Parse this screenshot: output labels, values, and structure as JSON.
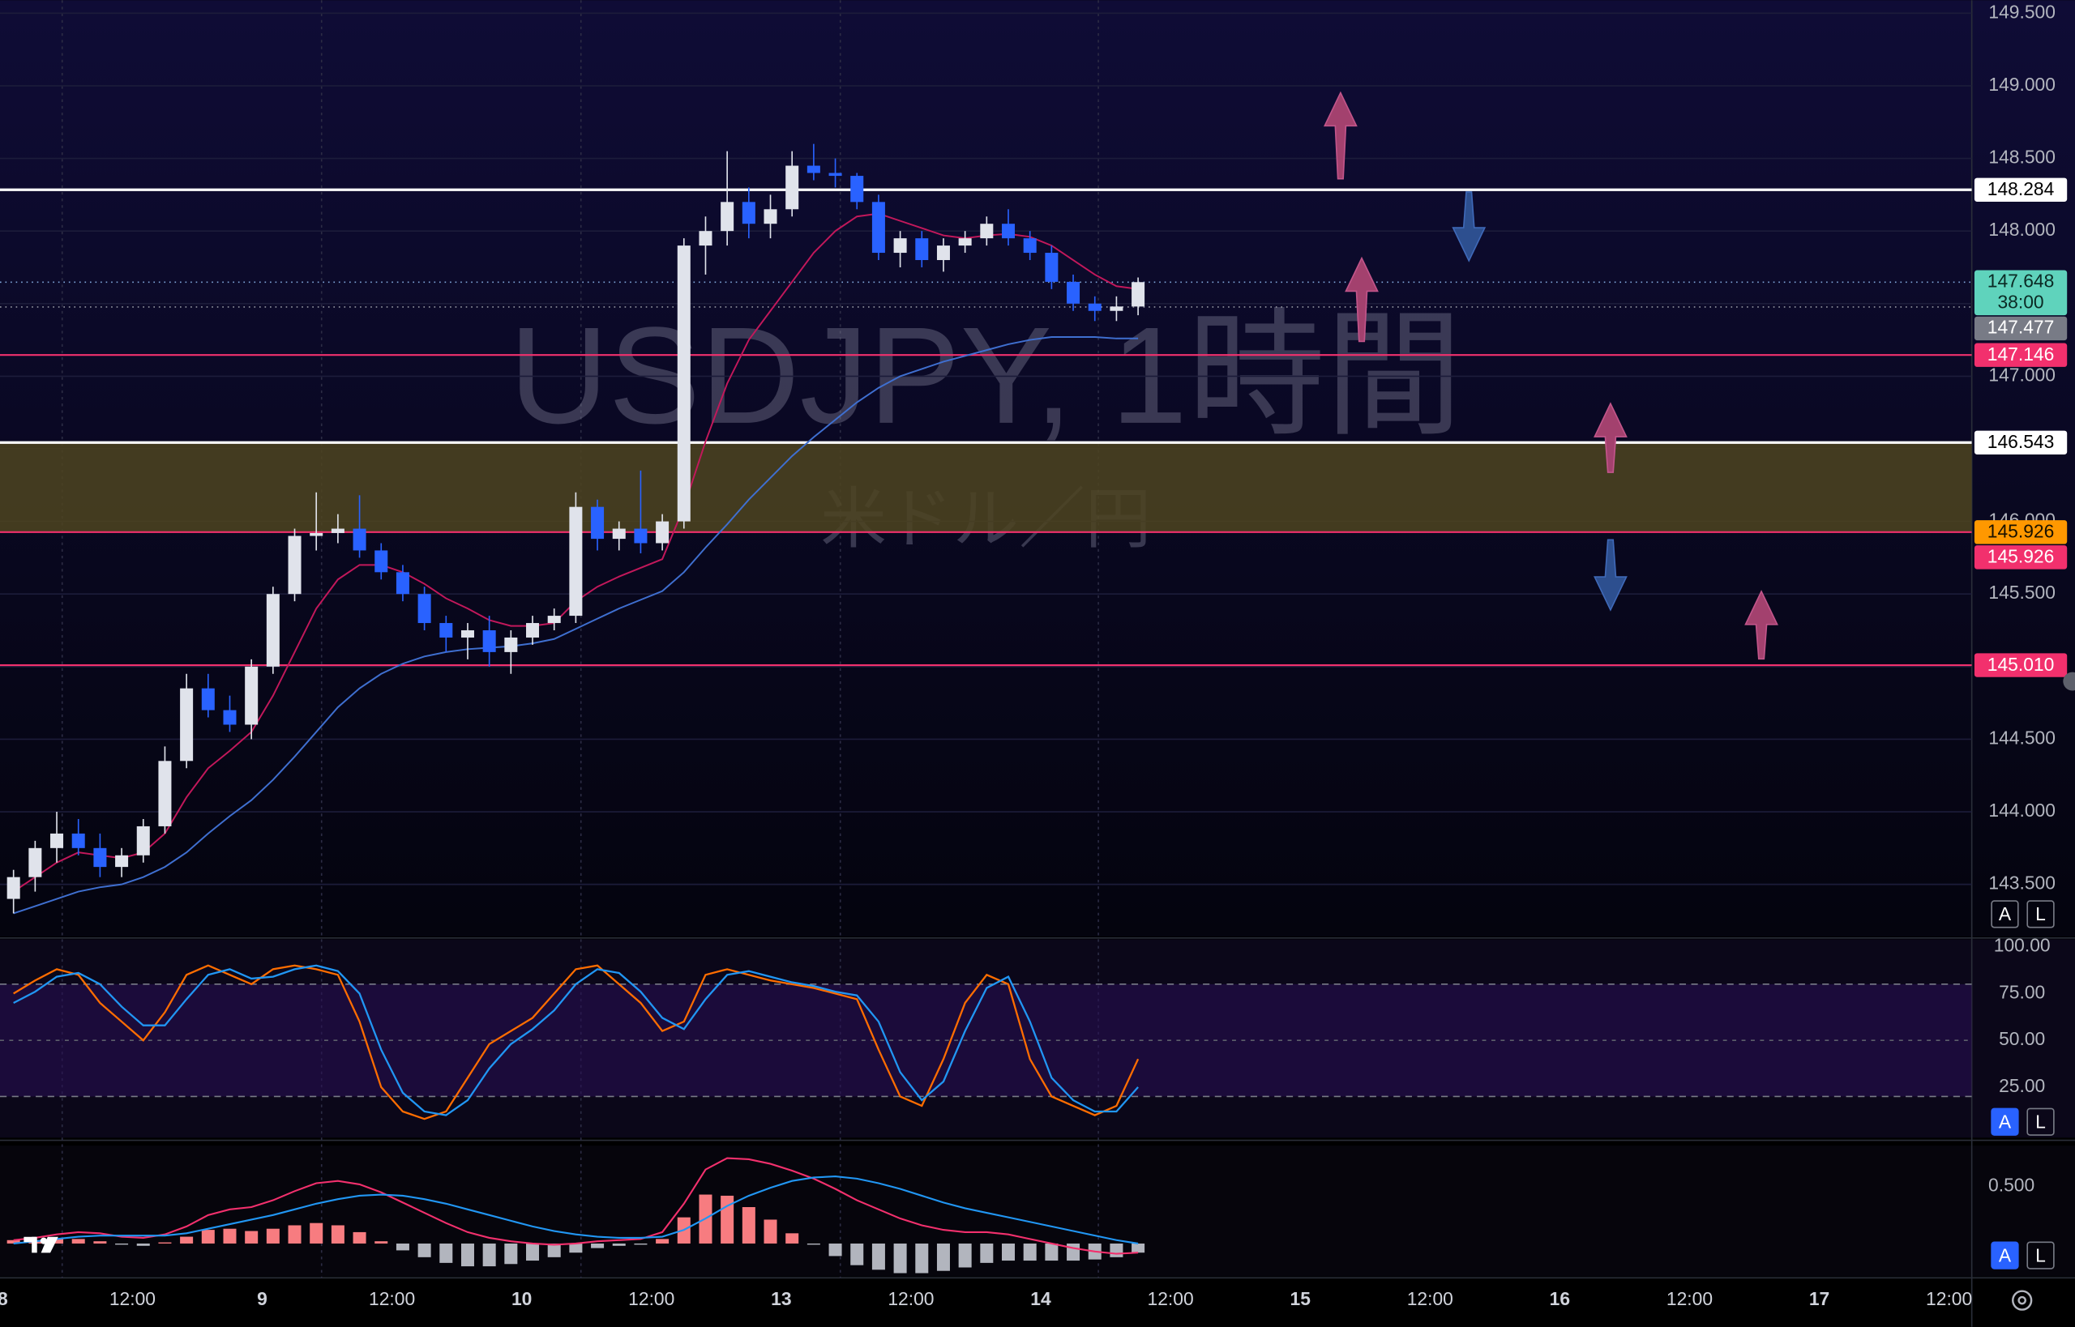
{
  "chart_data": {
    "type": "candlestick",
    "title": "USDJPY, 1時間",
    "subtitle": "米ドル／円",
    "xlim": [
      -0.25,
      182.1
    ],
    "ylim": [
      143.14,
      149.59
    ],
    "yticks": [
      {
        "value": 143.5,
        "label": "143.500"
      },
      {
        "value": 144,
        "label": "144.000"
      },
      {
        "value": 144.5,
        "label": "144.500"
      },
      {
        "value": 145,
        "label": "145.000"
      },
      {
        "value": 145.5,
        "label": "145.500"
      },
      {
        "value": 146,
        "label": "146.000"
      },
      {
        "value": 146.5,
        "label": "146.500"
      },
      {
        "value": 147,
        "label": "147.000"
      },
      {
        "value": 147.5,
        "label": "147.500"
      },
      {
        "value": 148,
        "label": "148.000"
      },
      {
        "value": 148.5,
        "label": "148.500"
      },
      {
        "value": 149,
        "label": "149.000"
      },
      {
        "value": 149.5,
        "label": "149.500"
      }
    ],
    "xticks": [
      {
        "value": 0,
        "label": "8"
      },
      {
        "value": 12,
        "label": "12:00"
      },
      {
        "value": 24,
        "label": "9"
      },
      {
        "value": 36,
        "label": "12:00"
      },
      {
        "value": 48,
        "label": "10"
      },
      {
        "value": 60,
        "label": "12:00"
      },
      {
        "value": 72,
        "label": "13"
      },
      {
        "value": 84,
        "label": "12:00"
      },
      {
        "value": 96,
        "label": "14"
      },
      {
        "value": 108,
        "label": "12:00"
      },
      {
        "value": 120,
        "label": "15"
      },
      {
        "value": 132,
        "label": "12:00"
      },
      {
        "value": 144,
        "label": "16"
      },
      {
        "value": 156,
        "label": "12:00"
      },
      {
        "value": 168,
        "label": "17"
      },
      {
        "value": 180,
        "label": "12:00"
      }
    ],
    "grid": true,
    "up_color": "#e0e3eb",
    "down_color": "#2962ff",
    "x": [
      1,
      3,
      5,
      7,
      9,
      11,
      13,
      15,
      17,
      19,
      21,
      23,
      25,
      27,
      29,
      31,
      33,
      35,
      37,
      39,
      41,
      43,
      45,
      47,
      49,
      51,
      53,
      55,
      57,
      59,
      61,
      63,
      65,
      67,
      69,
      71,
      73,
      75,
      77,
      79,
      81,
      83,
      85,
      87,
      89,
      91,
      93,
      95,
      97,
      99,
      101,
      103,
      105
    ],
    "open": [
      143.4,
      143.55,
      143.75,
      143.85,
      143.75,
      143.62,
      143.7,
      143.9,
      144.35,
      144.85,
      144.7,
      144.6,
      145.0,
      145.5,
      145.9,
      145.92,
      145.95,
      145.8,
      145.65,
      145.5,
      145.3,
      145.2,
      145.25,
      145.1,
      145.2,
      145.3,
      145.35,
      146.1,
      145.88,
      145.95,
      145.85,
      146.0,
      147.9,
      148.0,
      148.2,
      148.05,
      148.15,
      148.45,
      148.4,
      148.38,
      148.2,
      147.85,
      147.95,
      147.8,
      147.9,
      147.95,
      148.05,
      147.95,
      147.85,
      147.65,
      147.5,
      147.45,
      147.48
    ],
    "high": [
      143.6,
      143.8,
      144.0,
      143.95,
      143.85,
      143.75,
      143.95,
      144.45,
      144.95,
      144.95,
      144.8,
      145.05,
      145.55,
      145.95,
      146.2,
      146.05,
      146.18,
      145.85,
      145.7,
      145.55,
      145.35,
      145.3,
      145.35,
      145.25,
      145.35,
      145.4,
      146.2,
      146.15,
      146.0,
      146.35,
      146.05,
      147.95,
      148.1,
      148.55,
      148.3,
      148.25,
      148.55,
      148.6,
      148.5,
      148.4,
      148.25,
      148.0,
      148.0,
      147.95,
      148.0,
      148.1,
      148.15,
      148.0,
      147.9,
      147.7,
      147.55,
      147.55,
      147.68
    ],
    "low": [
      143.3,
      143.45,
      143.65,
      143.7,
      143.55,
      143.55,
      143.65,
      143.85,
      144.3,
      144.65,
      144.55,
      144.5,
      144.95,
      145.45,
      145.8,
      145.85,
      145.75,
      145.6,
      145.45,
      145.25,
      145.1,
      145.05,
      145.0,
      144.95,
      145.15,
      145.25,
      145.3,
      145.8,
      145.8,
      145.78,
      145.8,
      145.95,
      147.7,
      147.9,
      147.95,
      147.95,
      148.1,
      148.35,
      148.3,
      148.15,
      147.8,
      147.75,
      147.75,
      147.72,
      147.85,
      147.9,
      147.9,
      147.8,
      147.6,
      147.45,
      147.38,
      147.38,
      147.42
    ],
    "close": [
      143.55,
      143.75,
      143.85,
      143.75,
      143.62,
      143.7,
      143.9,
      144.35,
      144.85,
      144.7,
      144.6,
      145.0,
      145.5,
      145.9,
      145.92,
      145.95,
      145.8,
      145.65,
      145.5,
      145.3,
      145.2,
      145.25,
      145.1,
      145.2,
      145.3,
      145.35,
      146.1,
      145.88,
      145.95,
      145.85,
      146.0,
      147.9,
      148.0,
      148.2,
      148.05,
      148.15,
      148.45,
      148.4,
      148.38,
      148.2,
      147.85,
      147.95,
      147.8,
      147.9,
      147.95,
      148.05,
      147.95,
      147.85,
      147.65,
      147.5,
      147.45,
      147.48,
      147.648
    ],
    "ribbon": [
      {
        "color": "#c2185b",
        "values": [
          143.45,
          143.55,
          143.65,
          143.72,
          143.7,
          143.68,
          143.72,
          143.85,
          144.1,
          144.3,
          144.42,
          144.55,
          144.8,
          145.1,
          145.4,
          145.6,
          145.7,
          145.7,
          145.65,
          145.57,
          145.47,
          145.4,
          145.32,
          145.28,
          145.28,
          145.3,
          145.45,
          145.55,
          145.62,
          145.68,
          145.74,
          146.1,
          146.55,
          146.95,
          147.25,
          147.45,
          147.65,
          147.85,
          148.0,
          148.1,
          148.12,
          148.07,
          148.02,
          147.97,
          147.95,
          147.97,
          147.98,
          147.96,
          147.9,
          147.8,
          147.7,
          147.62,
          147.6
        ]
      },
      {
        "color": "#3f6fd0",
        "values": [
          143.3,
          143.35,
          143.4,
          143.45,
          143.48,
          143.5,
          143.55,
          143.62,
          143.72,
          143.85,
          143.97,
          144.08,
          144.22,
          144.38,
          144.55,
          144.72,
          144.85,
          144.95,
          145.02,
          145.07,
          145.1,
          145.12,
          145.13,
          145.14,
          145.16,
          145.19,
          145.26,
          145.33,
          145.4,
          145.46,
          145.52,
          145.65,
          145.82,
          145.98,
          146.15,
          146.3,
          146.45,
          146.58,
          146.7,
          146.82,
          146.92,
          147.0,
          147.05,
          147.1,
          147.14,
          147.18,
          147.22,
          147.25,
          147.27,
          147.27,
          147.27,
          147.26,
          147.26
        ]
      }
    ],
    "zone": {
      "from": 145.926,
      "to": 146.543,
      "color": "#4d4420",
      "label": "145.926",
      "label_color": "#ff9800"
    },
    "levels": [
      {
        "value": 148.284,
        "label": "148.284",
        "color": "#ffffff"
      },
      {
        "value": 146.543,
        "label": "146.543",
        "color": "#ffffff"
      },
      {
        "value": 147.146,
        "label": "147.146",
        "color": "#f2306d"
      },
      {
        "value": 145.926,
        "label": "145.926",
        "color": "#f2306d"
      },
      {
        "value": 145.01,
        "label": "145.010",
        "color": "#f2306d"
      }
    ],
    "last_price": {
      "value": 147.648,
      "label": "147.648",
      "countdown": "38:00",
      "color": "#5fd3bc"
    },
    "prev_price": {
      "value": 147.477,
      "label": "147.477",
      "color": "#787b86"
    },
    "auto_label": "A",
    "log_label": "L",
    "stochastic": {
      "ylim": [
        -2,
        104
      ],
      "yticks": [
        {
          "value": 100,
          "label": "100.00"
        },
        {
          "value": 75,
          "label": "75.00"
        },
        {
          "value": 50,
          "label": "50.00"
        },
        {
          "value": 25,
          "label": "25.00"
        }
      ],
      "band": [
        20,
        80
      ],
      "midline": 50,
      "series": [
        {
          "color": "#ff6d00",
          "values": [
            75,
            82,
            88,
            85,
            70,
            60,
            50,
            65,
            85,
            90,
            85,
            80,
            88,
            90,
            88,
            85,
            60,
            25,
            12,
            8,
            12,
            30,
            48,
            55,
            62,
            75,
            88,
            90,
            80,
            70,
            55,
            60,
            85,
            88,
            85,
            82,
            80,
            78,
            75,
            72,
            45,
            20,
            15,
            40,
            70,
            85,
            80,
            40,
            20,
            15,
            10,
            15,
            40
          ]
        },
        {
          "color": "#2196f3",
          "values": [
            70,
            76,
            84,
            86,
            80,
            68,
            58,
            58,
            72,
            85,
            88,
            83,
            84,
            88,
            90,
            87,
            75,
            45,
            22,
            12,
            10,
            18,
            35,
            48,
            56,
            66,
            80,
            88,
            86,
            76,
            62,
            56,
            72,
            85,
            87,
            84,
            81,
            79,
            76,
            74,
            60,
            33,
            18,
            28,
            55,
            78,
            84,
            60,
            30,
            18,
            12,
            12,
            25
          ]
        }
      ]
    },
    "macd": {
      "ylim": [
        -0.29,
        0.86
      ],
      "yticks": [
        {
          "value": 0.5,
          "label": "0.500"
        }
      ],
      "series": [
        {
          "color": "#f2306d",
          "values": [
            0.03,
            0.05,
            0.08,
            0.1,
            0.09,
            0.06,
            0.05,
            0.08,
            0.15,
            0.25,
            0.3,
            0.32,
            0.38,
            0.46,
            0.53,
            0.55,
            0.52,
            0.45,
            0.36,
            0.27,
            0.18,
            0.1,
            0.05,
            0.02,
            0.0,
            -0.01,
            0.0,
            0.02,
            0.03,
            0.04,
            0.1,
            0.35,
            0.65,
            0.75,
            0.74,
            0.7,
            0.64,
            0.57,
            0.48,
            0.38,
            0.3,
            0.22,
            0.16,
            0.12,
            0.1,
            0.1,
            0.08,
            0.04,
            0.0,
            -0.04,
            -0.07,
            -0.09,
            -0.08
          ]
        },
        {
          "color": "#2196f3",
          "values": [
            0.0,
            0.02,
            0.04,
            0.06,
            0.07,
            0.07,
            0.07,
            0.07,
            0.09,
            0.13,
            0.17,
            0.21,
            0.25,
            0.3,
            0.35,
            0.39,
            0.42,
            0.43,
            0.42,
            0.39,
            0.35,
            0.3,
            0.25,
            0.2,
            0.15,
            0.11,
            0.08,
            0.06,
            0.05,
            0.05,
            0.06,
            0.12,
            0.22,
            0.33,
            0.42,
            0.49,
            0.55,
            0.58,
            0.59,
            0.57,
            0.53,
            0.48,
            0.42,
            0.36,
            0.31,
            0.27,
            0.23,
            0.19,
            0.15,
            0.11,
            0.07,
            0.03,
            0.0
          ]
        }
      ],
      "histogram": {
        "positive_color": "#f77c80",
        "negative_color": "#b2b5be",
        "values": [
          0.03,
          0.03,
          0.04,
          0.04,
          0.02,
          -0.01,
          -0.02,
          0.01,
          0.06,
          0.12,
          0.13,
          0.11,
          0.13,
          0.16,
          0.18,
          0.16,
          0.1,
          0.02,
          -0.06,
          -0.12,
          -0.17,
          -0.2,
          -0.2,
          -0.18,
          -0.15,
          -0.12,
          -0.08,
          -0.04,
          -0.02,
          -0.01,
          0.04,
          0.23,
          0.43,
          0.42,
          0.32,
          0.21,
          0.09,
          -0.01,
          -0.11,
          -0.19,
          -0.23,
          -0.26,
          -0.26,
          -0.24,
          -0.21,
          -0.17,
          -0.15,
          -0.15,
          -0.15,
          -0.15,
          -0.14,
          -0.12,
          -0.08
        ]
      }
    }
  }
}
